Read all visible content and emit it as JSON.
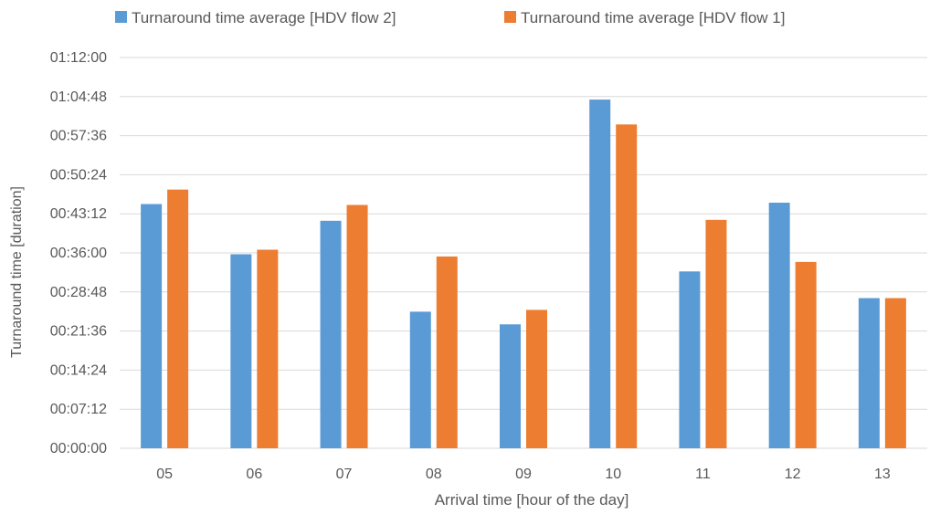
{
  "chart_data": {
    "type": "bar",
    "categories": [
      "05",
      "06",
      "07",
      "08",
      "09",
      "10",
      "11",
      "12",
      "13"
    ],
    "series": [
      {
        "name": "Turnaround time average [HDV flow 2]",
        "color": "#5B9BD5",
        "values": [
          "00:45:00",
          "00:35:45",
          "00:41:55",
          "00:25:10",
          "00:22:50",
          "01:04:15",
          "00:32:35",
          "00:45:15",
          "00:27:40"
        ]
      },
      {
        "name": "Turnaround time average [HDV flow 1]",
        "color": "#ED7D31",
        "values": [
          "00:47:40",
          "00:36:35",
          "00:44:50",
          "00:35:20",
          "00:25:30",
          "00:59:40",
          "00:42:05",
          "00:34:20",
          "00:27:40"
        ]
      }
    ],
    "y_ticks": [
      "00:00:00",
      "00:07:12",
      "00:14:24",
      "00:21:36",
      "00:28:48",
      "00:36:00",
      "00:43:12",
      "00:50:24",
      "00:57:36",
      "01:04:48",
      "01:12:00"
    ],
    "ylim": [
      "00:00:00",
      "01:12:00"
    ],
    "xlabel": "Arrival time [hour of the day]",
    "ylabel": "Turnaround time [duration]",
    "legend_position": "top",
    "grid": true,
    "gridline_color": "#D9D9D9"
  }
}
